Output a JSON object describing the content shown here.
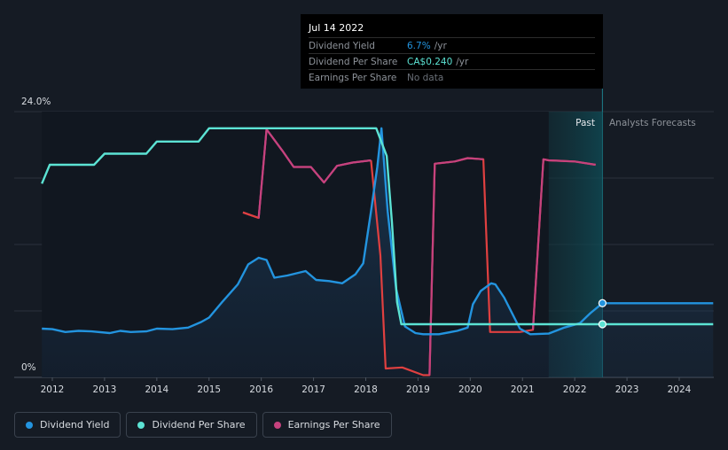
{
  "tooltip": {
    "date": "Jul 14 2022",
    "rows": [
      {
        "label": "Dividend Yield",
        "value": "6.7%",
        "unit": "/yr"
      },
      {
        "label": "Dividend Per Share",
        "value": "CA$0.240",
        "unit": "/yr"
      },
      {
        "label": "Earnings Per Share",
        "value": "No data",
        "unit": ""
      }
    ]
  },
  "legend": [
    {
      "label": "Dividend Yield",
      "color": "#2394df"
    },
    {
      "label": "Dividend Per Share",
      "color": "#5ce3d4"
    },
    {
      "label": "Earnings Per Share",
      "color": "#c6427e"
    }
  ],
  "chart_data": {
    "type": "line",
    "y_top_label": "24.0%",
    "y_bottom_label": "0%",
    "ylim": [
      0,
      24
    ],
    "xlim": [
      2011.8,
      2024.65
    ],
    "x_ticks": [
      2012,
      2013,
      2014,
      2015,
      2016,
      2017,
      2018,
      2019,
      2020,
      2021,
      2022,
      2023,
      2024
    ],
    "past_label": "Past",
    "forecast_label": "Analysts Forecasts",
    "forecast_start": 2021.5,
    "current_x": 2022.53,
    "grid": true,
    "series": [
      {
        "name": "Dividend Yield",
        "color": "#2394df",
        "fill": true,
        "points": [
          [
            2011.8,
            4.4
          ],
          [
            2012.0,
            4.35
          ],
          [
            2012.25,
            4.1
          ],
          [
            2012.5,
            4.2
          ],
          [
            2012.75,
            4.15
          ],
          [
            2013.1,
            4.0
          ],
          [
            2013.3,
            4.2
          ],
          [
            2013.5,
            4.1
          ],
          [
            2013.8,
            4.15
          ],
          [
            2014.0,
            4.4
          ],
          [
            2014.3,
            4.35
          ],
          [
            2014.6,
            4.5
          ],
          [
            2014.85,
            5.0
          ],
          [
            2015.0,
            5.4
          ],
          [
            2015.25,
            6.8
          ],
          [
            2015.55,
            8.4
          ],
          [
            2015.75,
            10.2
          ],
          [
            2015.95,
            10.8
          ],
          [
            2016.1,
            10.6
          ],
          [
            2016.25,
            9.0
          ],
          [
            2016.5,
            9.2
          ],
          [
            2016.85,
            9.6
          ],
          [
            2017.05,
            8.8
          ],
          [
            2017.3,
            8.7
          ],
          [
            2017.55,
            8.5
          ],
          [
            2017.8,
            9.3
          ],
          [
            2017.95,
            10.3
          ],
          [
            2018.1,
            15.0
          ],
          [
            2018.22,
            19.0
          ],
          [
            2018.3,
            22.5
          ],
          [
            2018.42,
            15.0
          ],
          [
            2018.58,
            8.0
          ],
          [
            2018.75,
            4.6
          ],
          [
            2018.95,
            4.0
          ],
          [
            2019.1,
            3.9
          ],
          [
            2019.4,
            3.9
          ],
          [
            2019.75,
            4.2
          ],
          [
            2019.95,
            4.5
          ],
          [
            2020.05,
            6.6
          ],
          [
            2020.2,
            7.8
          ],
          [
            2020.4,
            8.5
          ],
          [
            2020.48,
            8.4
          ],
          [
            2020.65,
            7.2
          ],
          [
            2020.95,
            4.4
          ],
          [
            2021.15,
            3.9
          ],
          [
            2021.5,
            3.95
          ],
          [
            2021.8,
            4.5
          ],
          [
            2022.1,
            4.9
          ],
          [
            2022.3,
            5.8
          ],
          [
            2022.53,
            6.7
          ],
          [
            2022.8,
            6.7
          ],
          [
            2023.5,
            6.7
          ],
          [
            2024.65,
            6.7
          ]
        ]
      },
      {
        "name": "Dividend Per Share",
        "color": "#5ce3d4",
        "points": [
          [
            2011.8,
            17.5
          ],
          [
            2011.95,
            19.2
          ],
          [
            2012.1,
            19.2
          ],
          [
            2012.8,
            19.2
          ],
          [
            2013.0,
            20.2
          ],
          [
            2013.8,
            20.2
          ],
          [
            2014.0,
            21.3
          ],
          [
            2014.8,
            21.3
          ],
          [
            2015.0,
            22.5
          ],
          [
            2018.2,
            22.5
          ],
          [
            2018.4,
            20.0
          ],
          [
            2018.5,
            14.0
          ],
          [
            2018.6,
            6.8
          ],
          [
            2018.68,
            4.8
          ],
          [
            2019.0,
            4.8
          ],
          [
            2022.53,
            4.8
          ],
          [
            2024.65,
            4.8
          ]
        ]
      },
      {
        "name": "Earnings Per Share",
        "color": "#c6427e",
        "split_at": 9,
        "points": [
          [
            2015.65,
            14.9
          ],
          [
            2015.95,
            14.4
          ],
          [
            2016.1,
            22.4
          ],
          [
            2016.4,
            20.5
          ],
          [
            2016.62,
            19.0
          ],
          [
            2016.95,
            19.0
          ],
          [
            2017.2,
            17.6
          ],
          [
            2017.45,
            19.1
          ],
          [
            2017.75,
            19.4
          ],
          [
            2018.1,
            19.6
          ],
          [
            2018.28,
            11.0
          ],
          [
            2018.38,
            0.8
          ],
          [
            2018.7,
            0.9
          ],
          [
            2019.1,
            0.2
          ],
          [
            2019.22,
            0.2
          ],
          [
            2019.32,
            19.3
          ],
          [
            2019.7,
            19.5
          ],
          [
            2019.95,
            19.8
          ],
          [
            2020.25,
            19.7
          ],
          [
            2020.38,
            4.1
          ],
          [
            2020.7,
            4.1
          ],
          [
            2020.95,
            4.1
          ],
          [
            2021.2,
            4.3
          ],
          [
            2021.4,
            19.7
          ],
          [
            2021.5,
            19.6
          ],
          [
            2022.0,
            19.5
          ],
          [
            2022.4,
            19.2
          ]
        ]
      }
    ]
  }
}
